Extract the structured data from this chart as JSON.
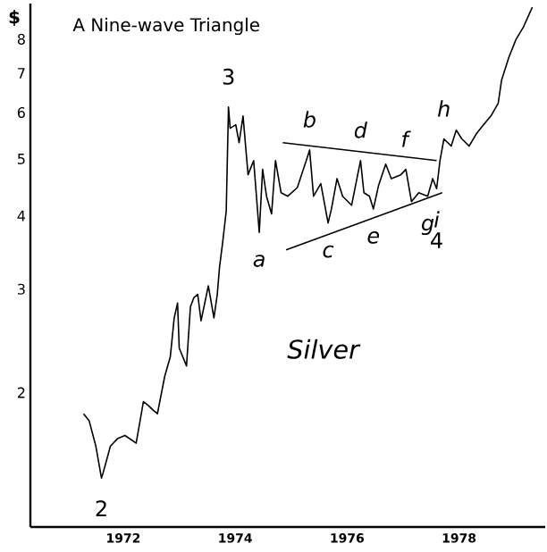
{
  "chart_data": {
    "type": "line",
    "title": "A Nine-wave Triangle",
    "ylabel": "$",
    "log": "y",
    "grid": false,
    "marker": "none",
    "line_style": "solid",
    "xlim": [
      1970.34,
      1979.54
    ],
    "ylim": [
      1.18,
      9.2
    ],
    "xticks": [
      1972,
      1974,
      1976,
      1978
    ],
    "yticks": [
      2,
      3,
      4,
      5,
      6,
      7,
      8
    ],
    "series": [
      {
        "color": "#000000",
        "x": [
          1971.29,
          1971.39,
          1971.51,
          1971.61,
          1971.64,
          1971.77,
          1971.9,
          1972.03,
          1972.23,
          1972.36,
          1972.45,
          1972.55,
          1972.61,
          1972.74,
          1972.84,
          1972.91,
          1972.97,
          1973.0,
          1973.13,
          1973.2,
          1973.26,
          1973.33,
          1973.39,
          1973.52,
          1973.62,
          1973.68,
          1973.72,
          1973.78,
          1973.84,
          1973.88,
          1973.91,
          1974.01,
          1974.07,
          1974.14,
          1974.23,
          1974.33,
          1974.43,
          1974.49,
          1974.56,
          1974.65,
          1974.72,
          1974.82,
          1974.94,
          1975.11,
          1975.27,
          1975.33,
          1975.4,
          1975.53,
          1975.66,
          1975.72,
          1975.82,
          1975.92,
          1976.08,
          1976.24,
          1976.3,
          1976.4,
          1976.47,
          1976.56,
          1976.69,
          1976.79,
          1976.96,
          1977.05,
          1977.15,
          1977.28,
          1977.44,
          1977.53,
          1977.6,
          1977.66,
          1977.73,
          1977.86,
          1977.95,
          1978.05,
          1978.18,
          1978.31,
          1978.44,
          1978.57,
          1978.7,
          1978.76,
          1978.89,
          1979.02,
          1979.15,
          1979.25,
          1979.31
        ],
        "values": [
          1.84,
          1.79,
          1.62,
          1.43,
          1.46,
          1.62,
          1.67,
          1.69,
          1.64,
          1.93,
          1.9,
          1.86,
          1.84,
          2.13,
          2.3,
          2.68,
          2.84,
          2.38,
          2.22,
          2.8,
          2.9,
          2.94,
          2.65,
          3.04,
          2.68,
          2.94,
          3.27,
          3.63,
          4.08,
          6.13,
          5.64,
          5.72,
          5.33,
          5.92,
          4.7,
          4.97,
          3.75,
          4.8,
          4.32,
          4.03,
          4.97,
          4.38,
          4.32,
          4.47,
          4.97,
          5.18,
          4.32,
          4.54,
          3.89,
          4.11,
          4.63,
          4.32,
          4.17,
          4.97,
          4.38,
          4.32,
          4.11,
          4.5,
          4.9,
          4.63,
          4.7,
          4.8,
          4.23,
          4.38,
          4.32,
          4.63,
          4.45,
          4.97,
          5.41,
          5.26,
          5.6,
          5.41,
          5.26,
          5.52,
          5.72,
          5.92,
          6.22,
          6.81,
          7.45,
          8.0,
          8.39,
          8.81,
          9.07
        ]
      },
      {
        "type": "line",
        "color": "#000000",
        "x": [
          1974.85,
          1977.6
        ],
        "values": [
          5.33,
          4.97
        ]
      },
      {
        "type": "line",
        "color": "#000000",
        "x": [
          1974.91,
          1977.7
        ],
        "values": [
          3.5,
          4.38
        ]
      }
    ],
    "annotations": [
      {
        "text": "2",
        "x": 1971.61,
        "y": 1.43
      },
      {
        "text": "3",
        "x": 1973.88,
        "y": 6.13
      },
      {
        "text": "*a*",
        "x": 1974.43,
        "y": 3.75
      },
      {
        "text": "*b*",
        "x": 1975.33,
        "y": 5.18
      },
      {
        "text": "*c*",
        "x": 1975.66,
        "y": 3.89
      },
      {
        "text": "*d*",
        "x": 1976.24,
        "y": 4.97
      },
      {
        "text": "*e*",
        "x": 1976.47,
        "y": 4.11
      },
      {
        "text": "*f*",
        "x": 1977.05,
        "y": 4.8
      },
      {
        "text": "*g*",
        "x": 1977.44,
        "y": 4.32
      },
      {
        "text": "*h*",
        "x": 1977.73,
        "y": 5.41
      },
      {
        "text": "*i*",
        "x": 1977.6,
        "y": 4.45
      },
      {
        "text": "4",
        "x": 1977.6,
        "y": 4.45
      },
      "*Silver*"
    ]
  }
}
